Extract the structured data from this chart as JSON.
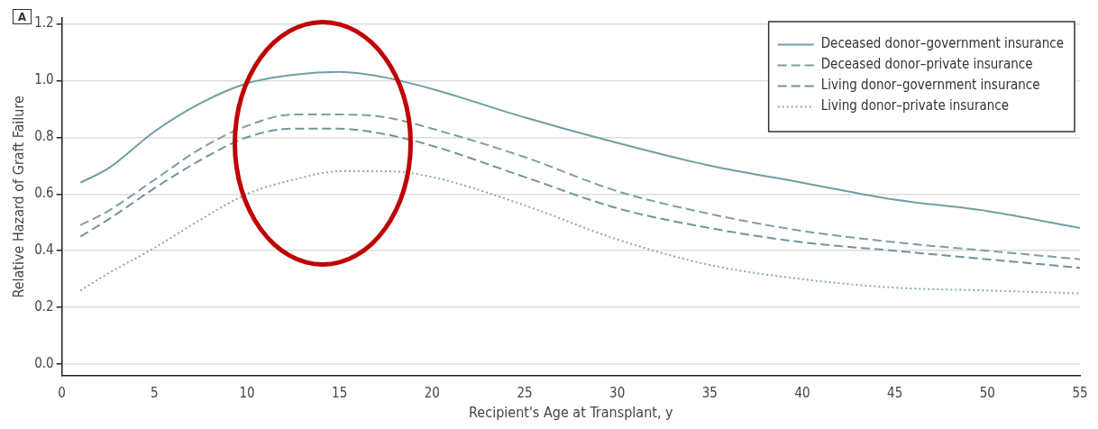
{
  "chart_data": {
    "type": "line",
    "xlabel": "Recipient's Age at Transplant, y",
    "ylabel": "Relative Hazard of Graft Failure",
    "annotations": [
      "A"
    ],
    "x": [
      1,
      2.5,
      5,
      7.5,
      10,
      12.5,
      15,
      17.5,
      20,
      25,
      30,
      35,
      40,
      45,
      50,
      55
    ],
    "xlim": [
      0,
      55
    ],
    "xticks": [
      0,
      5,
      10,
      15,
      20,
      25,
      30,
      35,
      40,
      45,
      50,
      55
    ],
    "ylim": [
      -0.04,
      1.22
    ],
    "yticks": [
      {
        "value": 0,
        "label": "0.0"
      },
      {
        "value": 0.2,
        "label": "0.2"
      },
      {
        "value": 0.4,
        "label": "0.4"
      },
      {
        "value": 0.6,
        "label": "0.6"
      },
      {
        "value": 0.8,
        "label": "0.8"
      },
      {
        "value": 1,
        "label": "1.0"
      },
      {
        "value": 1.2,
        "label": "1.2"
      }
    ],
    "grid": "y",
    "legend": "top right",
    "marker": "none",
    "series": [
      {
        "name": "Deceased donor–government insurance",
        "color": "#6e9fa3",
        "line_style": "solid",
        "values": [
          0.64,
          0.69,
          0.82,
          0.92,
          0.99,
          1.02,
          1.03,
          1.01,
          0.97,
          0.87,
          0.78,
          0.7,
          0.64,
          0.58,
          0.54,
          0.48
        ]
      },
      {
        "name": "Deceased donor–private insurance",
        "color": "#7f9da3",
        "line_style": "dashed",
        "values": [
          0.49,
          0.54,
          0.65,
          0.76,
          0.84,
          0.88,
          0.88,
          0.87,
          0.83,
          0.73,
          0.61,
          0.53,
          0.47,
          0.43,
          0.4,
          0.37
        ]
      },
      {
        "name": "Living donor–government insurance",
        "color": "#6f949b",
        "line_style": "dashed",
        "values": [
          0.45,
          0.51,
          0.62,
          0.72,
          0.8,
          0.83,
          0.83,
          0.81,
          0.77,
          0.66,
          0.55,
          0.48,
          0.43,
          0.4,
          0.37,
          0.34
        ]
      },
      {
        "name": "Living donor–private insurance",
        "color": "#8aabae",
        "line_style": "dotted",
        "values": [
          0.26,
          0.32,
          0.41,
          0.51,
          0.6,
          0.65,
          0.68,
          0.68,
          0.66,
          0.56,
          0.44,
          0.35,
          0.3,
          0.27,
          0.26,
          0.25
        ]
      }
    ]
  }
}
